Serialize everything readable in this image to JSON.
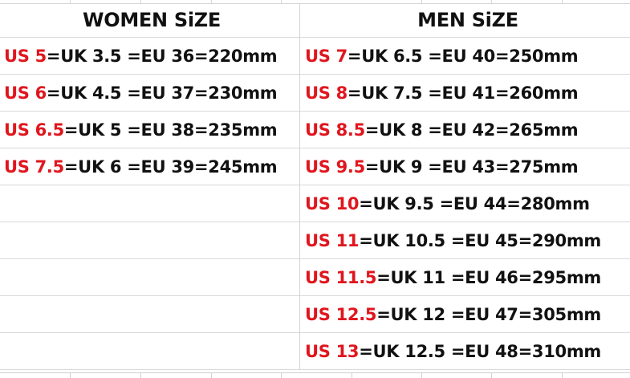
{
  "women": {
    "title": "WOMEN SiZE",
    "rows": [
      {
        "us": "US 5",
        "rest": "=UK 3.5 =EU 36=220mm"
      },
      {
        "us": "US 6",
        "rest": "=UK 4.5 =EU 37=230mm"
      },
      {
        "us": "US 6.5",
        "rest": "=UK 5 =EU 38=235mm"
      },
      {
        "us": "US 7.5",
        "rest": "=UK 6 =EU 39=245mm"
      }
    ]
  },
  "men": {
    "title": "MEN SiZE",
    "rows": [
      {
        "us": "US 7",
        "rest": "=UK 6.5 =EU 40=250mm"
      },
      {
        "us": "US 8",
        "rest": "=UK 7.5 =EU 41=260mm"
      },
      {
        "us": "US 8.5",
        "rest": "=UK 8 =EU 42=265mm"
      },
      {
        "us": "US 9.5",
        "rest": "=UK 9 =EU 43=275mm"
      },
      {
        "us": "US 10",
        "rest": "=UK 9.5 =EU 44=280mm"
      },
      {
        "us": "US 11",
        "rest": "=UK 10.5 =EU 45=290mm"
      },
      {
        "us": "US 11.5",
        "rest": "=UK 11 =EU 46=295mm"
      },
      {
        "us": "US 12.5",
        "rest": "=UK 12 =EU 47=305mm"
      },
      {
        "us": "US 13",
        "rest": "=UK 12.5 =EU 48=310mm"
      }
    ]
  },
  "colors": {
    "us_label": "#e0161e",
    "text": "#111111",
    "grid": "#d9d9d9"
  }
}
